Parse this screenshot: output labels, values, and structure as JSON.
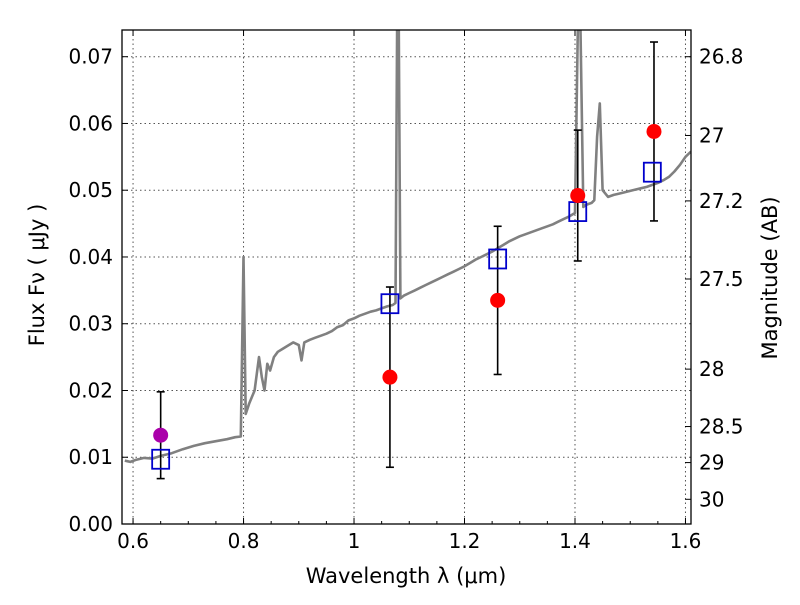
{
  "chart_data": {
    "type": "scatter",
    "xlabel": "Wavelength  λ (μm)",
    "ylabel": "Flux  Fν  ( μJy )",
    "ylabel_right": "Magnitude (AB)",
    "xlim": [
      0.58,
      1.61
    ],
    "ylim": [
      0.0,
      0.074
    ],
    "grid": true,
    "x_ticks": [
      0.6,
      0.8,
      1.0,
      1.2,
      1.4,
      1.6
    ],
    "x_tick_labels": [
      "0.6",
      "0.8",
      "1",
      "1.2",
      "1.4",
      "1.6"
    ],
    "y_ticks": [
      0.0,
      0.01,
      0.02,
      0.03,
      0.04,
      0.05,
      0.06,
      0.07
    ],
    "y_tick_labels": [
      "0.00",
      "0.01",
      "0.02",
      "0.03",
      "0.04",
      "0.05",
      "0.06",
      "0.07"
    ],
    "right_ticks": [
      {
        "label": "26.8",
        "flux": 0.07
      },
      {
        "label": "27",
        "flux": 0.0582
      },
      {
        "label": "27.2",
        "flux": 0.0484
      },
      {
        "label": "27.5",
        "flux": 0.0367
      },
      {
        "label": "28",
        "flux": 0.0232
      },
      {
        "label": "28.5",
        "flux": 0.0146
      },
      {
        "label": "29",
        "flux": 0.0092
      },
      {
        "label": "30",
        "flux": 0.0037
      }
    ],
    "colors": {
      "spectrum": "#808080",
      "observed": "#ff0000",
      "observed_first": "#aa00aa",
      "model": "#0000cc",
      "errorbar": "#000000",
      "grid": "#555555"
    },
    "series": [
      {
        "kind": "spectrum",
        "points": [
          [
            0.585,
            0.0095
          ],
          [
            0.595,
            0.0093
          ],
          [
            0.605,
            0.0096
          ],
          [
            0.62,
            0.0099
          ],
          [
            0.635,
            0.0098
          ],
          [
            0.65,
            0.0102
          ],
          [
            0.67,
            0.0106
          ],
          [
            0.69,
            0.0112
          ],
          [
            0.71,
            0.0117
          ],
          [
            0.73,
            0.0121
          ],
          [
            0.75,
            0.0124
          ],
          [
            0.77,
            0.0127
          ],
          [
            0.785,
            0.013
          ],
          [
            0.795,
            0.0131
          ],
          [
            0.8,
            0.04
          ],
          [
            0.804,
            0.0165
          ],
          [
            0.81,
            0.018
          ],
          [
            0.82,
            0.02
          ],
          [
            0.828,
            0.025
          ],
          [
            0.833,
            0.022
          ],
          [
            0.838,
            0.02
          ],
          [
            0.843,
            0.024
          ],
          [
            0.848,
            0.023
          ],
          [
            0.855,
            0.025
          ],
          [
            0.862,
            0.0258
          ],
          [
            0.87,
            0.0262
          ],
          [
            0.88,
            0.0267
          ],
          [
            0.89,
            0.0272
          ],
          [
            0.9,
            0.0268
          ],
          [
            0.905,
            0.0245
          ],
          [
            0.91,
            0.0272
          ],
          [
            0.92,
            0.0276
          ],
          [
            0.93,
            0.0279
          ],
          [
            0.94,
            0.0282
          ],
          [
            0.95,
            0.0285
          ],
          [
            0.96,
            0.0289
          ],
          [
            0.97,
            0.0295
          ],
          [
            0.98,
            0.0298
          ],
          [
            0.99,
            0.0305
          ],
          [
            1.0,
            0.0308
          ],
          [
            1.01,
            0.0312
          ],
          [
            1.02,
            0.0315
          ],
          [
            1.03,
            0.0318
          ],
          [
            1.04,
            0.032
          ],
          [
            1.05,
            0.0323
          ],
          [
            1.06,
            0.0326
          ],
          [
            1.07,
            0.0328
          ],
          [
            1.075,
            0.0331
          ],
          [
            1.078,
            0.074
          ],
          [
            1.081,
            0.074
          ],
          [
            1.084,
            0.0338
          ],
          [
            1.09,
            0.0342
          ],
          [
            1.1,
            0.0346
          ],
          [
            1.11,
            0.035
          ],
          [
            1.12,
            0.0354
          ],
          [
            1.13,
            0.0358
          ],
          [
            1.14,
            0.0362
          ],
          [
            1.15,
            0.0366
          ],
          [
            1.16,
            0.037
          ],
          [
            1.17,
            0.0374
          ],
          [
            1.18,
            0.0378
          ],
          [
            1.19,
            0.0382
          ],
          [
            1.2,
            0.0386
          ],
          [
            1.21,
            0.0391
          ],
          [
            1.22,
            0.0396
          ],
          [
            1.23,
            0.04
          ],
          [
            1.24,
            0.0404
          ],
          [
            1.25,
            0.0408
          ],
          [
            1.26,
            0.0413
          ],
          [
            1.27,
            0.0418
          ],
          [
            1.28,
            0.0423
          ],
          [
            1.29,
            0.0427
          ],
          [
            1.3,
            0.0431
          ],
          [
            1.31,
            0.0434
          ],
          [
            1.32,
            0.0437
          ],
          [
            1.33,
            0.044
          ],
          [
            1.34,
            0.0443
          ],
          [
            1.35,
            0.0446
          ],
          [
            1.36,
            0.0449
          ],
          [
            1.37,
            0.0453
          ],
          [
            1.38,
            0.0457
          ],
          [
            1.39,
            0.0461
          ],
          [
            1.4,
            0.0466
          ],
          [
            1.405,
            0.074
          ],
          [
            1.41,
            0.074
          ],
          [
            1.415,
            0.0475
          ],
          [
            1.42,
            0.0478
          ],
          [
            1.43,
            0.0481
          ],
          [
            1.435,
            0.0485
          ],
          [
            1.44,
            0.058
          ],
          [
            1.445,
            0.063
          ],
          [
            1.45,
            0.05
          ],
          [
            1.46,
            0.049
          ],
          [
            1.47,
            0.0493
          ],
          [
            1.48,
            0.0495
          ],
          [
            1.49,
            0.0497
          ],
          [
            1.5,
            0.0499
          ],
          [
            1.51,
            0.0501
          ],
          [
            1.52,
            0.0503
          ],
          [
            1.53,
            0.0505
          ],
          [
            1.54,
            0.0508
          ],
          [
            1.55,
            0.0511
          ],
          [
            1.56,
            0.0515
          ],
          [
            1.57,
            0.052
          ],
          [
            1.58,
            0.0528
          ],
          [
            1.59,
            0.0538
          ],
          [
            1.6,
            0.055
          ],
          [
            1.61,
            0.0558
          ]
        ]
      },
      {
        "kind": "observed",
        "points": [
          {
            "x": 0.65,
            "y": 0.0133,
            "err": 0.0065
          },
          {
            "x": 1.065,
            "y": 0.022,
            "err": 0.0135
          },
          {
            "x": 1.26,
            "y": 0.0335,
            "err": 0.0111
          },
          {
            "x": 1.405,
            "y": 0.0492,
            "err": 0.0098
          },
          {
            "x": 1.543,
            "y": 0.0588,
            "err": 0.0134
          }
        ]
      },
      {
        "kind": "model",
        "points": [
          {
            "x": 0.65,
            "y": 0.0097
          },
          {
            "x": 1.065,
            "y": 0.033
          },
          {
            "x": 1.26,
            "y": 0.0397
          },
          {
            "x": 1.405,
            "y": 0.0468
          },
          {
            "x": 1.54,
            "y": 0.0527
          }
        ]
      }
    ]
  }
}
